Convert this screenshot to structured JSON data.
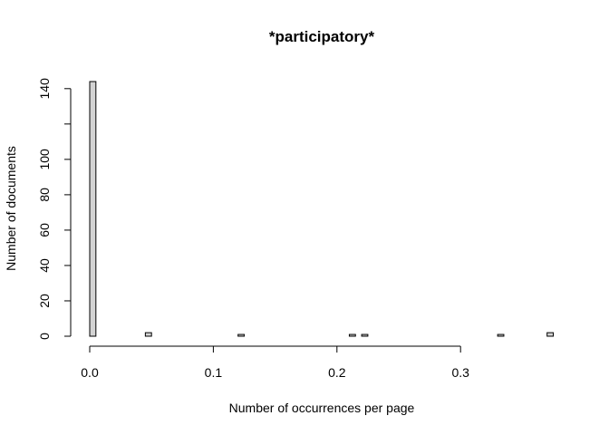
{
  "chart_data": {
    "type": "bar",
    "title": "*participatory*",
    "xlabel": "Number of occurrences per page",
    "ylabel": "Number of documents",
    "xlim": [
      0,
      0.375
    ],
    "ylim": [
      0,
      144
    ],
    "bin_width": 0.005,
    "x_ticks": [
      0,
      0.1,
      0.2,
      0.3
    ],
    "x_tick_labels": [
      "0.0",
      "0.1",
      "0.2",
      "0.3"
    ],
    "y_ticks": [
      0,
      20,
      40,
      60,
      80,
      100,
      120,
      140
    ],
    "y_tick_labels": [
      "0",
      "20",
      "40",
      "60",
      "80",
      "100",
      "",
      "140"
    ],
    "bin_starts": [
      0.0,
      0.045,
      0.12,
      0.21,
      0.22,
      0.33,
      0.37
    ],
    "values": [
      144,
      2,
      1,
      1,
      1,
      1,
      2
    ],
    "bar_color": "#d3d3d3",
    "grid": false,
    "legend": "none"
  }
}
